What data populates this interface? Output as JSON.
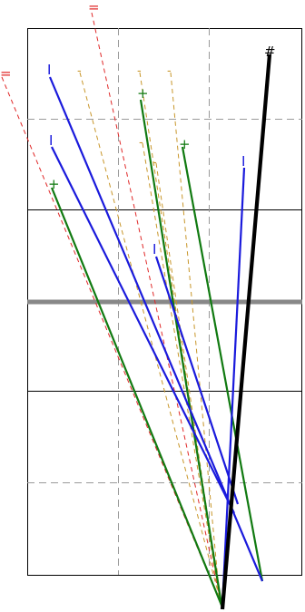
{
  "marks": {
    "hash": "#",
    "double_bar": "=",
    "bar": "I",
    "plus": "+",
    "dash": "-"
  },
  "colors": {
    "background": "#ffffff",
    "frame": "#000000",
    "grid_dashed": "#999999",
    "center_band": "#888888",
    "black_ray": "#000000",
    "blue_ray": "#1a1adc",
    "green_ray": "#117a11",
    "red_ray": "#e02828",
    "orange_ray": "#c8962a"
  }
}
